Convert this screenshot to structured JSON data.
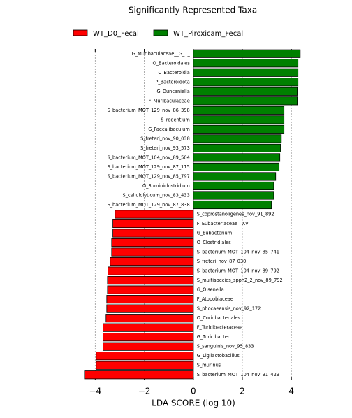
{
  "chart_data": {
    "type": "bar",
    "orientation": "horizontal",
    "title": "Significantly Represented Taxa",
    "xlabel": "LDA SCORE (log 10)",
    "categories": [
      "G_Muribaculaceae__G_1_",
      "O_Bacteroidales",
      "C_Bacteroidia",
      "P_Bacteroidota",
      "G_Duncaniella",
      "F_Muribaculaceae",
      "S_bacterium_MOT_129_nov_86_398",
      "S_rodentium",
      "G_Faecalibaculum",
      "S_freteri_nov_90_038",
      "S_freteri_nov_93_573",
      "S_bacterium_MOT_104_nov_89_504",
      "S_bacterium_MOT_129_nov_87_115",
      "S_bacterium_MOT_129_nov_85_797",
      "G_Ruminiclostridium",
      "S_cellulolyticum_nov_83_433",
      "S_bacterium_MOT_129_nov_87_838",
      "S_coprostanoligenes_nov_91_892",
      "F_Eubacteriaceae__XV_",
      "G_Eubacterium",
      "O_Clostridiales",
      "S_bacterium_MOT_104_nov_85_741",
      "S_freteri_nov_87_030",
      "S_bacterium_MOT_104_nov_89_792",
      "S_multispecies_sppn2_2_nov_89_792",
      "G_Olsenella",
      "F_Atopobiaceae",
      "S_phocaeensis_nov_92_172",
      "O_Coriobacteriales",
      "F_Turicibacteraceae",
      "G_Turicibacter",
      "S_sanguinis_nov_95_833",
      "G_Ligilactobacillus",
      "S_murinus",
      "S_bacterium_MOT_104_nov_91_429"
    ],
    "series": [
      {
        "name": "WT_D0_Fecal",
        "color": "#ff0000",
        "values": [
          null,
          null,
          null,
          null,
          null,
          null,
          null,
          null,
          null,
          null,
          null,
          null,
          null,
          null,
          null,
          null,
          null,
          -3.19,
          -3.28,
          -3.28,
          -3.33,
          -3.33,
          -3.39,
          -3.48,
          -3.5,
          -3.5,
          -3.53,
          -3.53,
          -3.56,
          -3.68,
          -3.68,
          -3.68,
          -3.96,
          -3.96,
          -4.44
        ]
      },
      {
        "name": "WT_Piroxicam_Fecal",
        "color": "#008000",
        "values": [
          4.36,
          4.27,
          4.27,
          4.27,
          4.24,
          4.24,
          3.7,
          3.7,
          3.7,
          3.59,
          3.56,
          3.53,
          3.5,
          3.36,
          3.28,
          3.28,
          3.19,
          null,
          null,
          null,
          null,
          null,
          null,
          null,
          null,
          null,
          null,
          null,
          null,
          null,
          null,
          null,
          null,
          null,
          null
        ]
      }
    ],
    "xlim": [
      -4.75,
      4.45
    ],
    "xticks": [
      {
        "value": -4,
        "label": "−4"
      },
      {
        "value": -2,
        "label": "−2"
      },
      0,
      2,
      4
    ],
    "grid": true,
    "legend": "top"
  }
}
